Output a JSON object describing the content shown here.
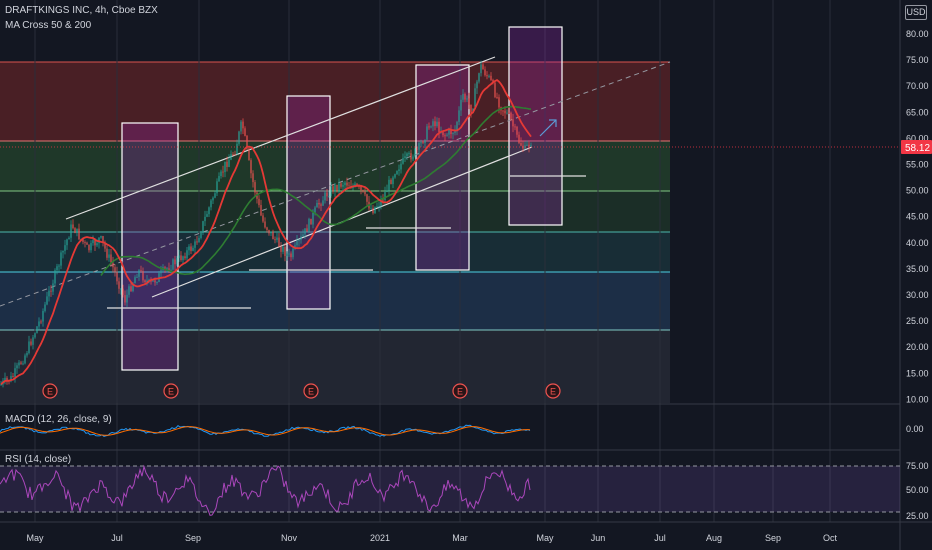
{
  "header": {
    "symbol_line": "DRAFTKINGS INC, 4h, Cboe BZX",
    "indicator_line": "MA Cross 50 & 200",
    "currency": "USD"
  },
  "price_axis": {
    "labels": [
      "80.00",
      "75.00",
      "70.00",
      "65.00",
      "60.00",
      "55.00",
      "50.00",
      "45.00",
      "40.00",
      "35.00",
      "30.00",
      "25.00",
      "20.00",
      "15.00",
      "10.00"
    ],
    "current_price": "58.12",
    "current_price_color": "#f23645"
  },
  "macd": {
    "label": "MACD (12, 26, close, 9)",
    "axis_label": "0.00"
  },
  "rsi": {
    "label": "RSI (14, close)",
    "axis_labels": [
      "75.00",
      "50.00",
      "25.00"
    ]
  },
  "time_axis": {
    "labels": [
      "May",
      "Jul",
      "Sep",
      "Nov",
      "2021",
      "Mar",
      "May",
      "Jun",
      "Jul",
      "Aug",
      "Sep",
      "Oct"
    ]
  },
  "earnings_marker": {
    "label": "E"
  },
  "colors": {
    "background": "#131722",
    "candle_up": "#26a69a",
    "candle_down": "#ef5350",
    "ma_fast": "#e53935",
    "ma_slow": "#2e7d32",
    "rsi_line": "#ab47bc",
    "zone_red": "#8b2a2a",
    "zone_green": "#2c5a30",
    "zone_blue": "#26466a",
    "zone_grey": "#2a2e39",
    "rect_fill": "#9c27b0"
  }
}
